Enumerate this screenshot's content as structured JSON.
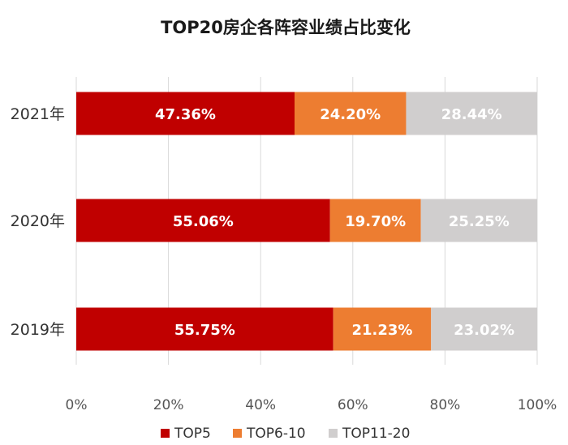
{
  "chart_data": {
    "type": "bar",
    "orientation": "horizontal",
    "stacked": true,
    "title": "TOP20房企各阵容业绩占比变化",
    "categories": [
      "2021年",
      "2020年",
      "2019年"
    ],
    "series": [
      {
        "name": "TOP5",
        "color": "#c00000",
        "values": [
          47.36,
          55.06,
          55.75
        ],
        "labels": [
          "47.36%",
          "55.06%",
          "55.75%"
        ]
      },
      {
        "name": "TOP6-10",
        "color": "#ed7d31",
        "values": [
          24.2,
          19.7,
          21.23
        ],
        "labels": [
          "24.20%",
          "19.70%",
          "21.23%"
        ]
      },
      {
        "name": "TOP11-20",
        "color": "#d0cece",
        "values": [
          28.44,
          25.25,
          23.02
        ],
        "labels": [
          "28.44%",
          "25.25%",
          "23.02%"
        ]
      }
    ],
    "xlim": [
      0,
      100
    ],
    "xticks": [
      0,
      20,
      40,
      60,
      80,
      100
    ],
    "xtick_labels": [
      "0%",
      "20%",
      "40%",
      "60%",
      "80%",
      "100%"
    ],
    "grid": true,
    "legend_position": "bottom"
  }
}
